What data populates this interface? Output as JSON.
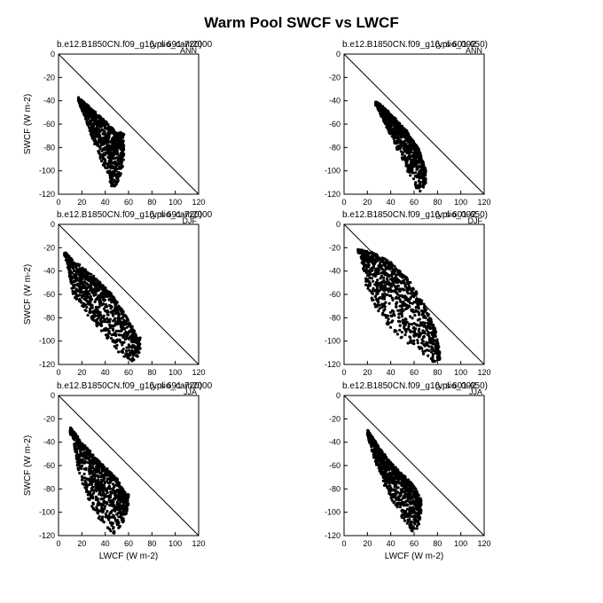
{
  "figure": {
    "title": "Warm Pool SWCF vs LWCF"
  },
  "chart_data": [
    {
      "type": "scatter",
      "case": "b.e12.B1850CN.f09_g16.plio_cam2000",
      "years": "(yrs 691-720)",
      "season": "ANN",
      "xlabel": "",
      "ylabel": "SWCF (W m-2)",
      "xlim": [
        0,
        120
      ],
      "ylim": [
        -120,
        0
      ],
      "xticks": [
        "0",
        "20",
        "40",
        "60",
        "80",
        "100",
        "120"
      ],
      "yticks": [
        "0",
        "-20",
        "-40",
        "-60",
        "-80",
        "-100",
        "-120"
      ],
      "reference_line": "y = -x",
      "cloud": {
        "upper_edge": [
          [
            17,
            -38
          ],
          [
            22,
            -42
          ],
          [
            30,
            -49
          ],
          [
            38,
            -56
          ],
          [
            44,
            -62
          ],
          [
            50,
            -68
          ]
        ],
        "lower_edge": [
          [
            17,
            -40
          ],
          [
            24,
            -58
          ],
          [
            28,
            -70
          ],
          [
            34,
            -85
          ],
          [
            40,
            -100
          ],
          [
            46,
            -115
          ],
          [
            52,
            -110
          ],
          [
            56,
            -94
          ]
        ]
      }
    },
    {
      "type": "scatter",
      "case": "b.e12.B1850CN.f09_g16.plio_002",
      "years": "(yrs 601-650)",
      "season": "ANN",
      "xlabel": "",
      "ylabel": "",
      "xlim": [
        0,
        120
      ],
      "ylim": [
        -120,
        0
      ],
      "xticks": [
        "0",
        "20",
        "40",
        "60",
        "80",
        "100",
        "120"
      ],
      "yticks": [
        "0",
        "-20",
        "-40",
        "-60",
        "-80",
        "-100",
        "-120"
      ],
      "reference_line": "y = -x",
      "cloud": {
        "upper_edge": [
          [
            27,
            -41
          ],
          [
            34,
            -46
          ],
          [
            44,
            -56
          ],
          [
            54,
            -67
          ],
          [
            64,
            -82
          ],
          [
            70,
            -100
          ]
        ],
        "lower_edge": [
          [
            28,
            -44
          ],
          [
            34,
            -58
          ],
          [
            40,
            -70
          ],
          [
            48,
            -86
          ],
          [
            56,
            -103
          ],
          [
            64,
            -118
          ],
          [
            70,
            -112
          ]
        ]
      }
    },
    {
      "type": "scatter",
      "case": "b.e12.B1850CN.f09_g16.plio_cam2000",
      "years": "(yrs 691-720)",
      "season": "DJF",
      "xlabel": "",
      "ylabel": "SWCF (W m-2)",
      "xlim": [
        0,
        120
      ],
      "ylim": [
        -120,
        0
      ],
      "xticks": [
        "0",
        "20",
        "40",
        "60",
        "80",
        "100",
        "120"
      ],
      "yticks": [
        "0",
        "-20",
        "-40",
        "-60",
        "-80",
        "-100",
        "-120"
      ],
      "reference_line": "y = -x",
      "cloud": {
        "upper_edge": [
          [
            5,
            -24
          ],
          [
            15,
            -33
          ],
          [
            30,
            -45
          ],
          [
            45,
            -60
          ],
          [
            58,
            -78
          ],
          [
            68,
            -98
          ]
        ],
        "lower_edge": [
          [
            6,
            -27
          ],
          [
            12,
            -60
          ],
          [
            20,
            -72
          ],
          [
            30,
            -84
          ],
          [
            40,
            -96
          ],
          [
            52,
            -110
          ],
          [
            64,
            -118
          ],
          [
            70,
            -110
          ]
        ]
      }
    },
    {
      "type": "scatter",
      "case": "b.e12.B1850CN.f09_g16.plio_002",
      "years": "(yrs 601-650)",
      "season": "DJF",
      "xlabel": "",
      "ylabel": "",
      "xlim": [
        0,
        120
      ],
      "ylim": [
        -120,
        0
      ],
      "xticks": [
        "0",
        "20",
        "40",
        "60",
        "80",
        "100",
        "120"
      ],
      "yticks": [
        "0",
        "-20",
        "-40",
        "-60",
        "-80",
        "-100",
        "-120"
      ],
      "reference_line": "y = -x",
      "cloud": {
        "upper_edge": [
          [
            12,
            -22
          ],
          [
            25,
            -25
          ],
          [
            40,
            -33
          ],
          [
            55,
            -48
          ],
          [
            68,
            -68
          ],
          [
            78,
            -90
          ],
          [
            82,
            -110
          ]
        ],
        "lower_edge": [
          [
            14,
            -24
          ],
          [
            18,
            -50
          ],
          [
            26,
            -70
          ],
          [
            40,
            -90
          ],
          [
            52,
            -100
          ],
          [
            66,
            -110
          ],
          [
            76,
            -118
          ],
          [
            82,
            -116
          ]
        ]
      }
    },
    {
      "type": "scatter",
      "case": "b.e12.B1850CN.f09_g16.plio_cam2000",
      "years": "(yrs 691-720)",
      "season": "JJA",
      "xlabel": "LWCF (W m-2)",
      "ylabel": "SWCF (W m-2)",
      "xlim": [
        0,
        120
      ],
      "ylim": [
        -120,
        0
      ],
      "xticks": [
        "0",
        "20",
        "40",
        "60",
        "80",
        "100",
        "120"
      ],
      "yticks": [
        "0",
        "-20",
        "-40",
        "-60",
        "-80",
        "-100",
        "-120"
      ],
      "reference_line": "y = -x",
      "cloud": {
        "upper_edge": [
          [
            10,
            -28
          ],
          [
            20,
            -40
          ],
          [
            30,
            -52
          ],
          [
            40,
            -62
          ],
          [
            50,
            -72
          ],
          [
            58,
            -85
          ]
        ],
        "lower_edge": [
          [
            12,
            -33
          ],
          [
            16,
            -60
          ],
          [
            22,
            -80
          ],
          [
            30,
            -98
          ],
          [
            38,
            -112
          ],
          [
            48,
            -118
          ],
          [
            56,
            -108
          ],
          [
            60,
            -95
          ]
        ]
      }
    },
    {
      "type": "scatter",
      "case": "b.e12.B1850CN.f09_g16.plio_002",
      "years": "(yrs 601-650)",
      "season": "JJA",
      "xlabel": "LWCF (W m-2)",
      "ylabel": "",
      "xlim": [
        0,
        120
      ],
      "ylim": [
        -120,
        0
      ],
      "xticks": [
        "0",
        "20",
        "40",
        "60",
        "80",
        "100",
        "120"
      ],
      "yticks": [
        "0",
        "-20",
        "-40",
        "-60",
        "-80",
        "-100",
        "-120"
      ],
      "reference_line": "y = -x",
      "cloud": {
        "upper_edge": [
          [
            20,
            -30
          ],
          [
            30,
            -45
          ],
          [
            40,
            -58
          ],
          [
            50,
            -68
          ],
          [
            60,
            -78
          ],
          [
            66,
            -90
          ]
        ],
        "lower_edge": [
          [
            20,
            -34
          ],
          [
            26,
            -55
          ],
          [
            34,
            -75
          ],
          [
            44,
            -95
          ],
          [
            52,
            -108
          ],
          [
            58,
            -118
          ],
          [
            64,
            -112
          ],
          [
            66,
            -100
          ]
        ]
      }
    }
  ]
}
